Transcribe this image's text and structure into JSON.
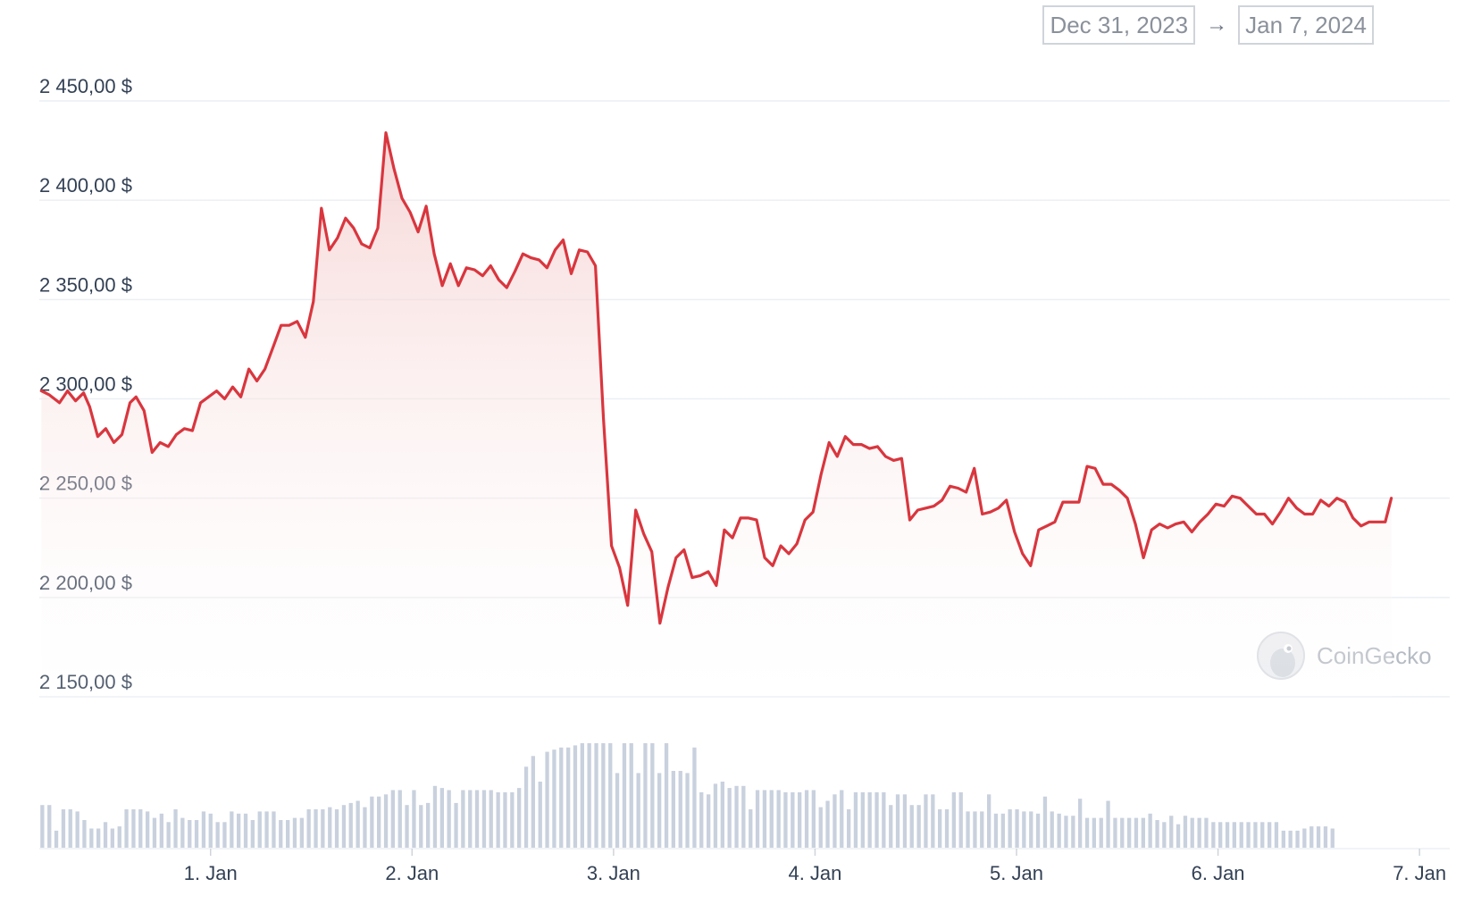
{
  "date_range": {
    "from": "Dec 31, 2023",
    "to": "Jan 7, 2024",
    "separator": "→"
  },
  "watermark": {
    "text": "CoinGecko",
    "icon": "coingecko-gecko-logo-icon"
  },
  "colors": {
    "line": "#d9363e",
    "area_top": "#f4c9c9",
    "grid": "#eceff3",
    "volume_bar": "#c9d1de"
  },
  "chart_data": {
    "type": "area",
    "xlabel": "",
    "ylabel": "",
    "ylim": [
      2130,
      2480
    ],
    "y_ticks": [
      2450,
      2400,
      2350,
      2300,
      2250,
      2200,
      2150
    ],
    "y_tick_labels": [
      "2 450,00 $",
      "2 400,00 $",
      "2 350,00 $",
      "2 300,00 $",
      "2 250,00 $",
      "2 200,00 $",
      "2 150,00 $"
    ],
    "x_range": [
      0.15,
      7.15
    ],
    "x_ticks": [
      1,
      2,
      3,
      4,
      5,
      6,
      7
    ],
    "x_tick_labels": [
      "1. Jan",
      "2. Jan",
      "3. Jan",
      "4. Jan",
      "5. Jan",
      "6. Jan",
      "7. Jan"
    ],
    "grid": true,
    "series": [
      {
        "points": [
          [
            0.16,
            2304
          ],
          [
            0.2,
            2302
          ],
          [
            0.25,
            2298
          ],
          [
            0.29,
            2304
          ],
          [
            0.33,
            2299
          ],
          [
            0.37,
            2303
          ],
          [
            0.4,
            2296
          ],
          [
            0.44,
            2281
          ],
          [
            0.48,
            2285
          ],
          [
            0.52,
            2278
          ],
          [
            0.56,
            2282
          ],
          [
            0.6,
            2298
          ],
          [
            0.63,
            2301
          ],
          [
            0.67,
            2294
          ],
          [
            0.71,
            2273
          ],
          [
            0.75,
            2278
          ],
          [
            0.79,
            2276
          ],
          [
            0.83,
            2282
          ],
          [
            0.87,
            2285
          ],
          [
            0.91,
            2284
          ],
          [
            0.95,
            2298
          ],
          [
            0.99,
            2301
          ],
          [
            1.03,
            2304
          ],
          [
            1.07,
            2300
          ],
          [
            1.11,
            2306
          ],
          [
            1.15,
            2301
          ],
          [
            1.19,
            2315
          ],
          [
            1.23,
            2309
          ],
          [
            1.27,
            2315
          ],
          [
            1.31,
            2326
          ],
          [
            1.35,
            2337
          ],
          [
            1.39,
            2337
          ],
          [
            1.43,
            2339
          ],
          [
            1.47,
            2331
          ],
          [
            1.51,
            2349
          ],
          [
            1.55,
            2396
          ],
          [
            1.59,
            2375
          ],
          [
            1.63,
            2381
          ],
          [
            1.67,
            2391
          ],
          [
            1.71,
            2386
          ],
          [
            1.75,
            2378
          ],
          [
            1.79,
            2376
          ],
          [
            1.83,
            2386
          ],
          [
            1.87,
            2434
          ],
          [
            1.91,
            2416
          ],
          [
            1.95,
            2401
          ],
          [
            1.99,
            2394
          ],
          [
            2.03,
            2384
          ],
          [
            2.07,
            2397
          ],
          [
            2.11,
            2373
          ],
          [
            2.15,
            2357
          ],
          [
            2.19,
            2368
          ],
          [
            2.23,
            2357
          ],
          [
            2.27,
            2366
          ],
          [
            2.31,
            2365
          ],
          [
            2.35,
            2362
          ],
          [
            2.39,
            2367
          ],
          [
            2.43,
            2360
          ],
          [
            2.47,
            2356
          ],
          [
            2.51,
            2364
          ],
          [
            2.55,
            2373
          ],
          [
            2.59,
            2371
          ],
          [
            2.63,
            2370
          ],
          [
            2.67,
            2366
          ],
          [
            2.71,
            2375
          ],
          [
            2.75,
            2380
          ],
          [
            2.79,
            2363
          ],
          [
            2.83,
            2375
          ],
          [
            2.87,
            2374
          ],
          [
            2.91,
            2367
          ],
          [
            2.95,
            2290
          ],
          [
            2.99,
            2226
          ],
          [
            3.03,
            2215
          ],
          [
            3.07,
            2196
          ],
          [
            3.11,
            2244
          ],
          [
            3.15,
            2232
          ],
          [
            3.19,
            2223
          ],
          [
            3.23,
            2187
          ],
          [
            3.27,
            2205
          ],
          [
            3.31,
            2220
          ],
          [
            3.35,
            2224
          ],
          [
            3.39,
            2210
          ],
          [
            3.43,
            2211
          ],
          [
            3.47,
            2213
          ],
          [
            3.51,
            2206
          ],
          [
            3.55,
            2234
          ],
          [
            3.59,
            2230
          ],
          [
            3.63,
            2240
          ],
          [
            3.67,
            2240
          ],
          [
            3.71,
            2239
          ],
          [
            3.75,
            2220
          ],
          [
            3.79,
            2216
          ],
          [
            3.83,
            2226
          ],
          [
            3.87,
            2222
          ],
          [
            3.91,
            2227
          ],
          [
            3.95,
            2239
          ],
          [
            3.99,
            2243
          ],
          [
            4.03,
            2262
          ],
          [
            4.07,
            2278
          ],
          [
            4.11,
            2271
          ],
          [
            4.15,
            2281
          ],
          [
            4.19,
            2277
          ],
          [
            4.23,
            2277
          ],
          [
            4.27,
            2275
          ],
          [
            4.31,
            2276
          ],
          [
            4.35,
            2271
          ],
          [
            4.39,
            2269
          ],
          [
            4.43,
            2270
          ],
          [
            4.47,
            2239
          ],
          [
            4.51,
            2244
          ],
          [
            4.55,
            2245
          ],
          [
            4.59,
            2246
          ],
          [
            4.63,
            2249
          ],
          [
            4.67,
            2256
          ],
          [
            4.71,
            2255
          ],
          [
            4.75,
            2253
          ],
          [
            4.79,
            2265
          ],
          [
            4.83,
            2242
          ],
          [
            4.87,
            2243
          ],
          [
            4.91,
            2245
          ],
          [
            4.95,
            2249
          ],
          [
            4.99,
            2233
          ],
          [
            5.03,
            2222
          ],
          [
            5.07,
            2216
          ],
          [
            5.11,
            2234
          ],
          [
            5.15,
            2236
          ],
          [
            5.19,
            2238
          ],
          [
            5.23,
            2248
          ],
          [
            5.27,
            2248
          ],
          [
            5.31,
            2248
          ],
          [
            5.35,
            2266
          ],
          [
            5.39,
            2265
          ],
          [
            5.43,
            2257
          ],
          [
            5.47,
            2257
          ],
          [
            5.51,
            2254
          ],
          [
            5.55,
            2250
          ],
          [
            5.59,
            2237
          ],
          [
            5.63,
            2220
          ],
          [
            5.67,
            2234
          ],
          [
            5.71,
            2237
          ],
          [
            5.75,
            2235
          ],
          [
            5.79,
            2237
          ],
          [
            5.83,
            2238
          ],
          [
            5.87,
            2233
          ],
          [
            5.91,
            2238
          ],
          [
            5.95,
            2242
          ],
          [
            5.99,
            2247
          ],
          [
            6.03,
            2246
          ],
          [
            6.07,
            2251
          ],
          [
            6.11,
            2250
          ],
          [
            6.15,
            2246
          ],
          [
            6.19,
            2242
          ],
          [
            6.23,
            2242
          ],
          [
            6.27,
            2237
          ],
          [
            6.31,
            2243
          ],
          [
            6.35,
            2250
          ],
          [
            6.39,
            2245
          ],
          [
            6.43,
            2242
          ],
          [
            6.47,
            2242
          ],
          [
            6.51,
            2249
          ],
          [
            6.55,
            2246
          ],
          [
            6.59,
            2250
          ],
          [
            6.63,
            2248
          ],
          [
            6.67,
            2240
          ],
          [
            6.71,
            2236
          ],
          [
            6.75,
            2238
          ],
          [
            6.79,
            2238
          ],
          [
            6.83,
            2238
          ],
          [
            6.86,
            2250
          ]
        ]
      },
      {
        "type": "bar",
        "x_start": 0.165,
        "x_step": 0.0348,
        "values": [
          20,
          20,
          8,
          18,
          18,
          17,
          13,
          9,
          9,
          12,
          9,
          10,
          18,
          18,
          18,
          17,
          14,
          16,
          12,
          18,
          14,
          13,
          13,
          17,
          16,
          12,
          12,
          17,
          16,
          16,
          13,
          17,
          17,
          17,
          13,
          13,
          14,
          14,
          18,
          18,
          18,
          19,
          18,
          20,
          21,
          22,
          19,
          24,
          24,
          25,
          27,
          27,
          20,
          27,
          20,
          21,
          29,
          28,
          27,
          21,
          27,
          27,
          27,
          27,
          27,
          26,
          26,
          26,
          28,
          38,
          43,
          31,
          45,
          46,
          47,
          47,
          48,
          49,
          49,
          49,
          49,
          49,
          35,
          49,
          49,
          35,
          49,
          49,
          35,
          49,
          36,
          36,
          35,
          47,
          26,
          25,
          30,
          31,
          28,
          29,
          29,
          18,
          27,
          27,
          27,
          27,
          26,
          26,
          26,
          27,
          27,
          19,
          22,
          25,
          27,
          18,
          26,
          26,
          26,
          26,
          26,
          20,
          25,
          25,
          20,
          20,
          25,
          25,
          18,
          18,
          26,
          26,
          17,
          17,
          17,
          25,
          16,
          16,
          18,
          18,
          17,
          17,
          16,
          24,
          17,
          16,
          15,
          15,
          23,
          14,
          14,
          14,
          22,
          14,
          14,
          14,
          14,
          14,
          16,
          13,
          12,
          15,
          11,
          15,
          14,
          14,
          14,
          12,
          12,
          12,
          12,
          12,
          12,
          12,
          12,
          12,
          12,
          8,
          8,
          8,
          9,
          10,
          10,
          10,
          9
        ]
      }
    ]
  }
}
